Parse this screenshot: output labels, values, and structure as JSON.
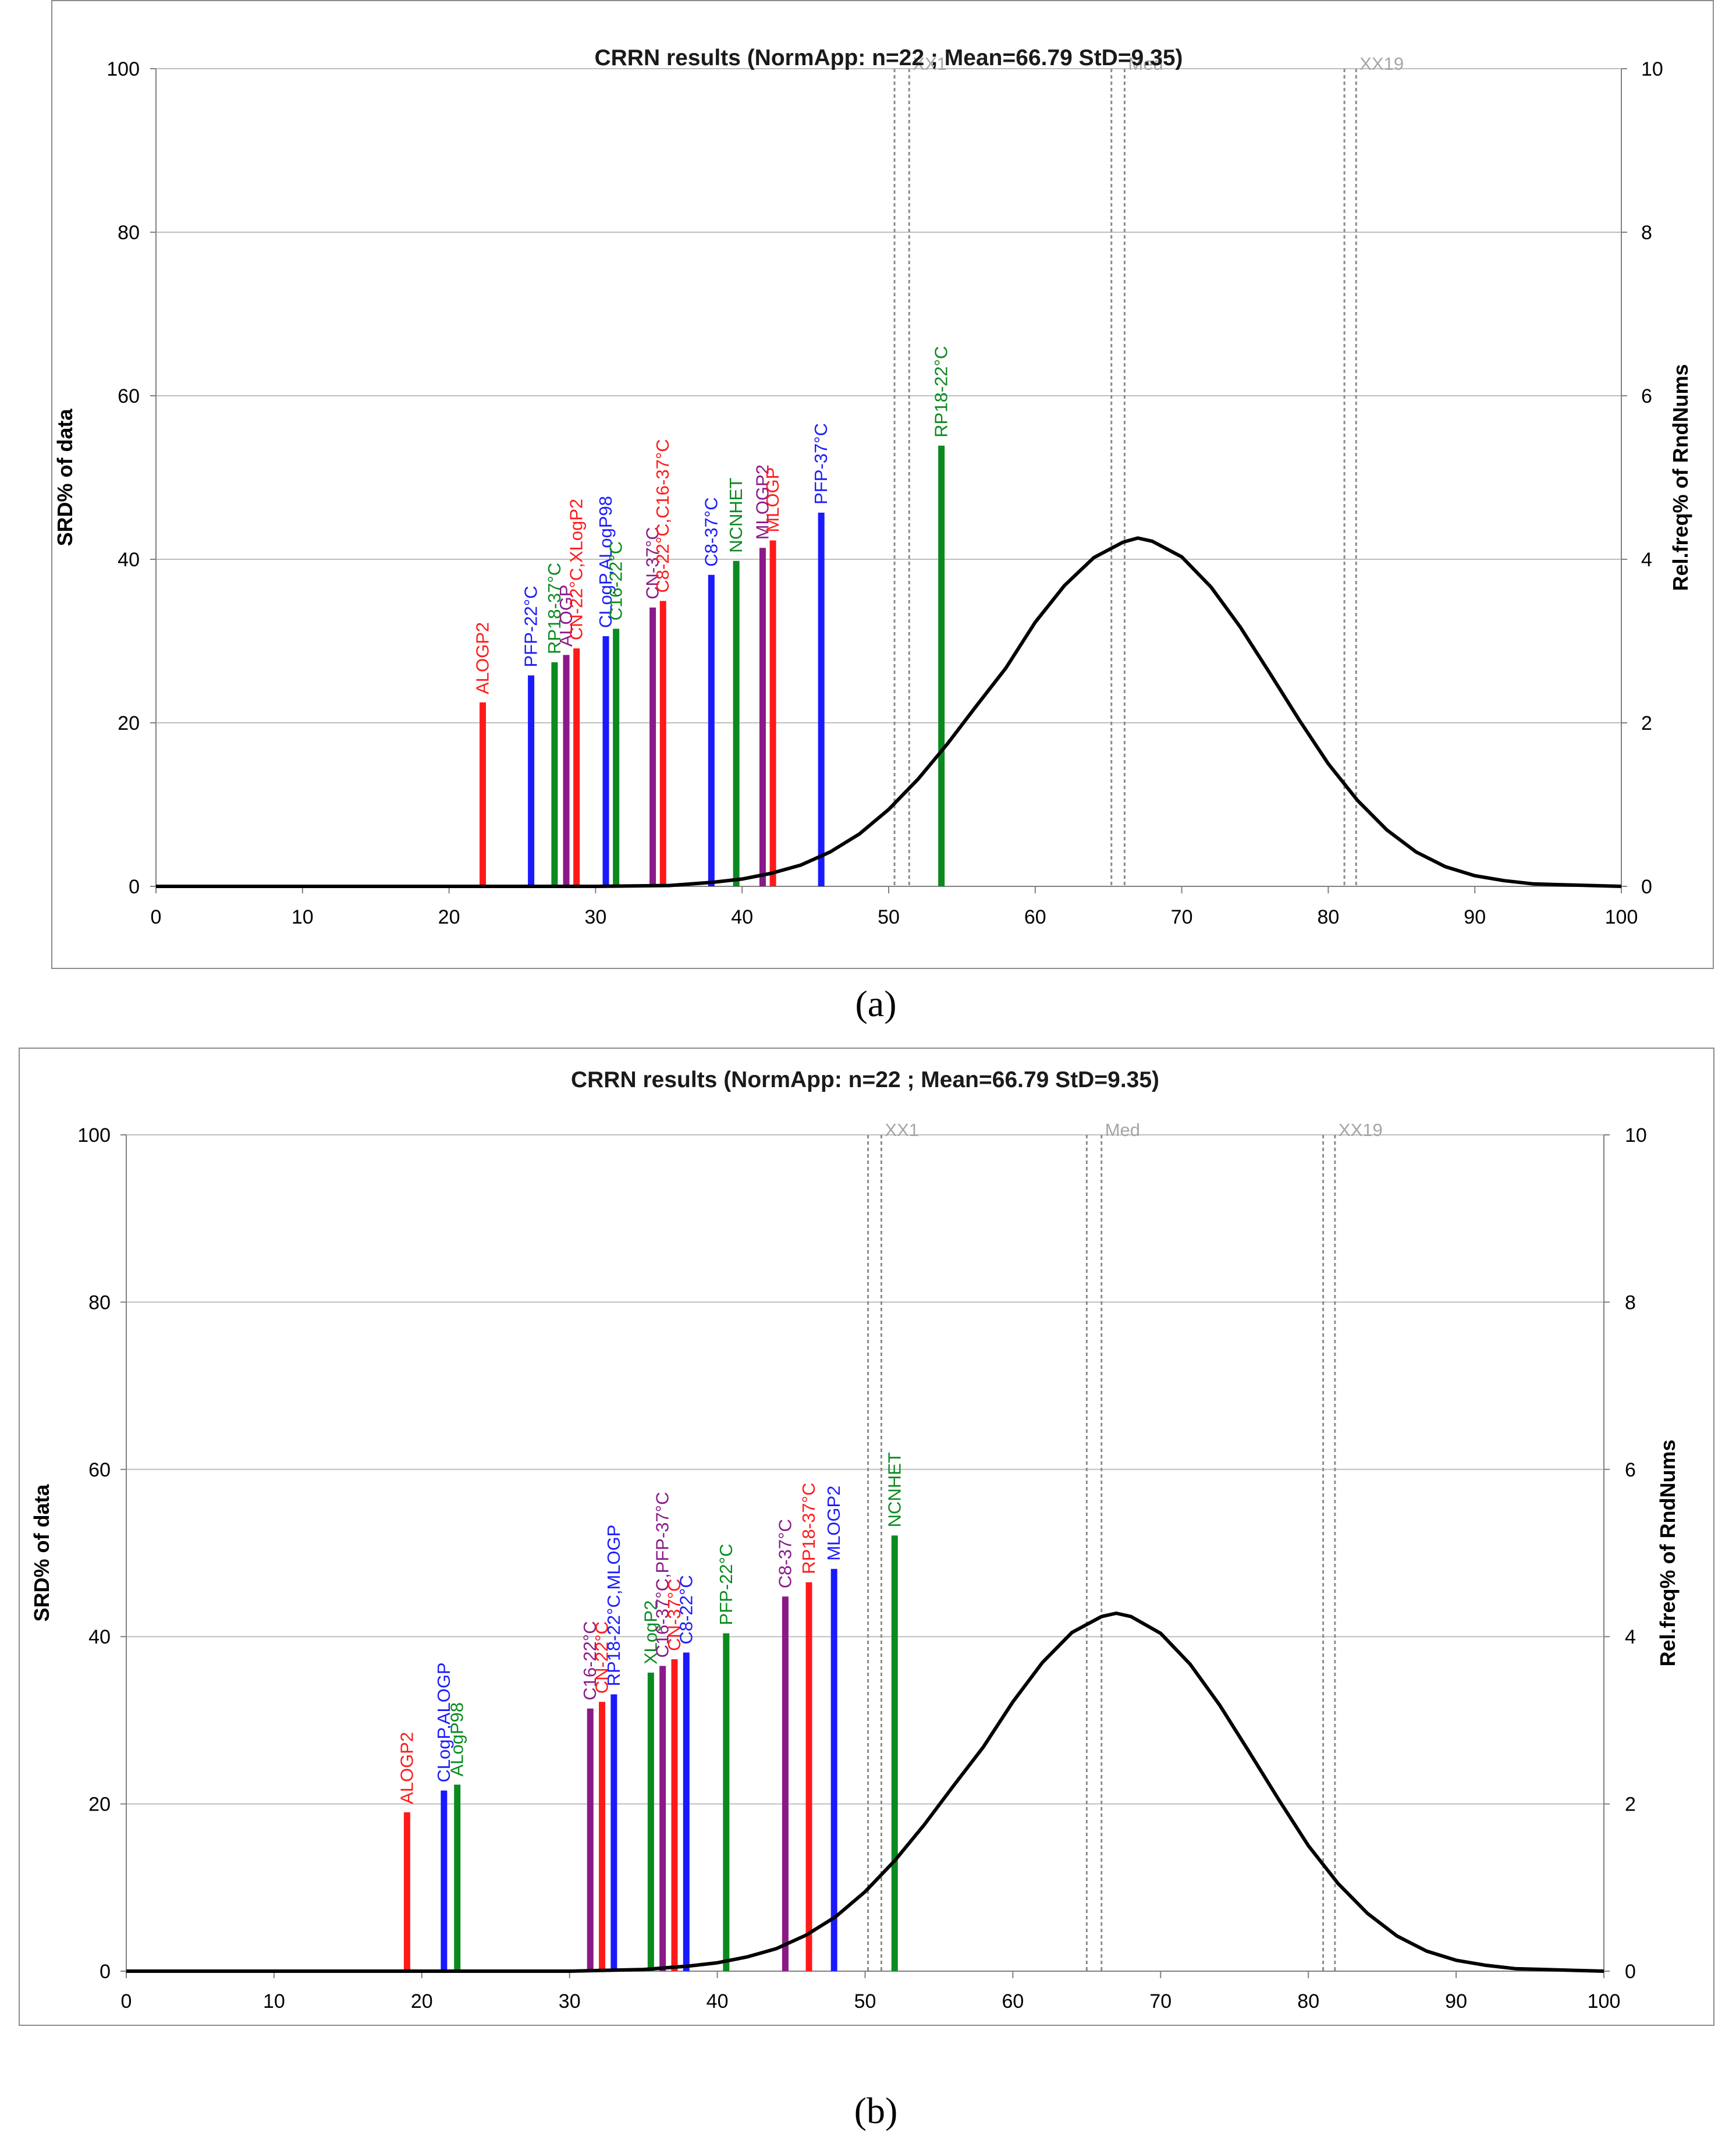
{
  "captions": {
    "a": "(a)",
    "b": "(b)"
  },
  "colors": {
    "red": "#ff1a1a",
    "blue": "#1a1aff",
    "green": "#0a8a1f",
    "purple": "#8a1a8a",
    "curve": "#000000",
    "marker": "#a6a6a6",
    "grid": "#bfbfbf"
  },
  "chart_data": [
    {
      "type": "bar",
      "panel": "a",
      "title": "CRRN results (NormApp: n=22 ; Mean=66.79 StD=9.35)",
      "xlabel": "",
      "ylabel": "SRD% of data",
      "y2label": "Rel.freq% of RndNums",
      "xlim": [
        0,
        100
      ],
      "ylim": [
        0,
        100
      ],
      "y2lim": [
        0,
        10
      ],
      "x_ticks": [
        "0",
        "10",
        "20",
        "30",
        "40",
        "50",
        "60",
        "70",
        "80",
        "90",
        "100"
      ],
      "y_ticks": [
        "0",
        "20",
        "40",
        "60",
        "80",
        "100"
      ],
      "y2_ticks": [
        "0",
        "2",
        "4",
        "6",
        "8",
        "10"
      ],
      "grid": true,
      "markers": [
        {
          "name": "XX1",
          "lines": [
            50.4,
            51.4
          ]
        },
        {
          "name": "Med",
          "lines": [
            65.2,
            66.1
          ]
        },
        {
          "name": "XX19",
          "lines": [
            81.1,
            81.9
          ]
        }
      ],
      "bars": [
        {
          "label": "ALOGP2",
          "x": 22.3,
          "y": 22.5,
          "color": "red"
        },
        {
          "label": "PFP-22°C",
          "x": 25.6,
          "y": 25.8,
          "color": "blue"
        },
        {
          "label": "RP18-37°C",
          "x": 27.2,
          "y": 27.4,
          "color": "green"
        },
        {
          "label": "ALOGP",
          "x": 28.0,
          "y": 28.3,
          "color": "purple"
        },
        {
          "label": "CN-22°C,XLogP2",
          "x": 28.7,
          "y": 29.1,
          "color": "red"
        },
        {
          "label": "CLogP,ALogP98",
          "x": 30.7,
          "y": 30.6,
          "color": "blue"
        },
        {
          "label": "C16-22°C",
          "x": 31.4,
          "y": 31.5,
          "color": "green"
        },
        {
          "label": "CN-37°C",
          "x": 33.9,
          "y": 34.1,
          "color": "purple"
        },
        {
          "label": "C8-22°C,C16-37°C",
          "x": 34.6,
          "y": 34.9,
          "color": "red"
        },
        {
          "label": "C8-37°C",
          "x": 37.9,
          "y": 38.1,
          "color": "blue"
        },
        {
          "label": "NCNHET",
          "x": 39.6,
          "y": 39.8,
          "color": "green"
        },
        {
          "label": "MLOGP2",
          "x": 41.4,
          "y": 41.4,
          "color": "purple"
        },
        {
          "label": "MLOGP",
          "x": 42.1,
          "y": 42.3,
          "color": "red"
        },
        {
          "label": "PFP-37°C",
          "x": 45.4,
          "y": 45.7,
          "color": "blue"
        },
        {
          "label": "RP18-22°C",
          "x": 53.6,
          "y": 53.9,
          "color": "green"
        }
      ],
      "curve": {
        "x": [
          0,
          30,
          35,
          38,
          40,
          42,
          44,
          46,
          48,
          50,
          52,
          54,
          56,
          58,
          60,
          62,
          64,
          66,
          67,
          68,
          70,
          72,
          74,
          76,
          78,
          80,
          82,
          84,
          86,
          88,
          90,
          92,
          94,
          96,
          98,
          100
        ],
        "y": [
          0,
          0,
          0.01,
          0.05,
          0.09,
          0.16,
          0.26,
          0.42,
          0.64,
          0.94,
          1.31,
          1.74,
          2.21,
          2.67,
          3.23,
          3.68,
          4.02,
          4.21,
          4.26,
          4.22,
          4.03,
          3.66,
          3.17,
          2.61,
          2.04,
          1.5,
          1.05,
          0.69,
          0.42,
          0.24,
          0.13,
          0.07,
          0.03,
          0.02,
          0.01,
          0
        ]
      }
    },
    {
      "type": "bar",
      "panel": "b",
      "title": "CRRN results (NormApp: n=22 ; Mean=66.79 StD=9.35)",
      "xlabel": "",
      "ylabel": "SRD% of data",
      "y2label": "Rel.freq% of RndNums",
      "xlim": [
        0,
        100
      ],
      "ylim": [
        0,
        100
      ],
      "y2lim": [
        0,
        10
      ],
      "x_ticks": [
        "0",
        "10",
        "20",
        "30",
        "40",
        "50",
        "60",
        "70",
        "80",
        "90",
        "100"
      ],
      "y_ticks": [
        "0",
        "20",
        "40",
        "60",
        "80",
        "100"
      ],
      "y2_ticks": [
        "0",
        "2",
        "4",
        "6",
        "8",
        "10"
      ],
      "grid": true,
      "markers": [
        {
          "name": "XX1",
          "lines": [
            50.2,
            51.1
          ]
        },
        {
          "name": "Med",
          "lines": [
            65.0,
            66.0
          ]
        },
        {
          "name": "XX19",
          "lines": [
            81.0,
            81.8
          ]
        }
      ],
      "bars": [
        {
          "label": "ALOGP2",
          "x": 19.0,
          "y": 19.0,
          "color": "red"
        },
        {
          "label": "CLogP,ALOGP",
          "x": 21.5,
          "y": 21.6,
          "color": "blue"
        },
        {
          "label": "ALogP98",
          "x": 22.4,
          "y": 22.3,
          "color": "green"
        },
        {
          "label": "C16-22°C",
          "x": 31.4,
          "y": 31.4,
          "color": "purple"
        },
        {
          "label": "CN-22°C",
          "x": 32.2,
          "y": 32.2,
          "color": "red"
        },
        {
          "label": "RP18-22°C,MLOGP",
          "x": 33.0,
          "y": 33.1,
          "color": "blue"
        },
        {
          "label": "XLogP2",
          "x": 35.5,
          "y": 35.7,
          "color": "green"
        },
        {
          "label": "C16-37°C,PFP-37°C",
          "x": 36.3,
          "y": 36.5,
          "color": "purple"
        },
        {
          "label": "CN-37°C",
          "x": 37.1,
          "y": 37.3,
          "color": "red"
        },
        {
          "label": "C8-22°C",
          "x": 37.9,
          "y": 38.1,
          "color": "blue"
        },
        {
          "label": "PFP-22°C",
          "x": 40.6,
          "y": 40.4,
          "color": "green"
        },
        {
          "label": "C8-37°C",
          "x": 44.6,
          "y": 44.8,
          "color": "purple"
        },
        {
          "label": "RP18-37°C",
          "x": 46.2,
          "y": 46.5,
          "color": "red"
        },
        {
          "label": "MLOGP2",
          "x": 47.9,
          "y": 48.1,
          "color": "blue"
        },
        {
          "label": "NCNHET",
          "x": 52.0,
          "y": 52.1,
          "color": "green"
        }
      ],
      "curve": {
        "x": [
          0,
          30,
          35,
          38,
          40,
          42,
          44,
          46,
          48,
          50,
          52,
          54,
          56,
          58,
          60,
          62,
          64,
          66,
          67,
          68,
          70,
          72,
          74,
          76,
          78,
          80,
          82,
          84,
          86,
          88,
          90,
          92,
          94,
          96,
          98,
          100
        ],
        "y": [
          0,
          0,
          0.02,
          0.06,
          0.1,
          0.17,
          0.27,
          0.43,
          0.65,
          0.95,
          1.32,
          1.75,
          2.22,
          2.68,
          3.22,
          3.69,
          4.05,
          4.24,
          4.28,
          4.24,
          4.04,
          3.67,
          3.18,
          2.62,
          2.05,
          1.5,
          1.05,
          0.69,
          0.42,
          0.24,
          0.13,
          0.07,
          0.03,
          0.02,
          0.01,
          0
        ]
      }
    }
  ]
}
